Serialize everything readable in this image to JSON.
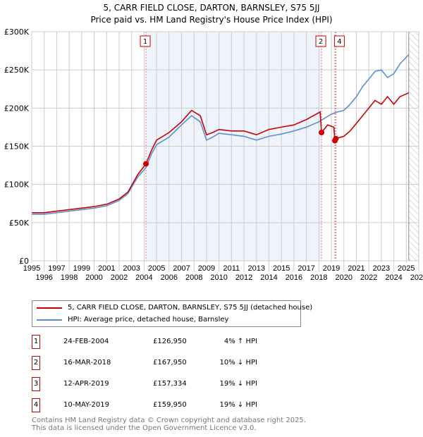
{
  "chart_data": {
    "type": "line",
    "title": "5, CARR FIELD CLOSE, DARTON, BARNSLEY, S75 5JJ",
    "subtitle": "Price paid vs. HM Land Registry's House Price Index (HPI)",
    "xlim": [
      1995,
      2026
    ],
    "ylim": [
      0,
      300000
    ],
    "x_ticks": [
      "1995",
      "1996",
      "1997",
      "1998",
      "1999",
      "2000",
      "2001",
      "2002",
      "2003",
      "2004",
      "2005",
      "2006",
      "2007",
      "2008",
      "2009",
      "2010",
      "2011",
      "2012",
      "2013",
      "2014",
      "2015",
      "2016",
      "2017",
      "2018",
      "2019",
      "2020",
      "2021",
      "2022",
      "2023",
      "2024",
      "2025",
      "2026"
    ],
    "y_ticks": [
      {
        "v": 0,
        "l": "£0"
      },
      {
        "v": 50000,
        "l": "£50K"
      },
      {
        "v": 100000,
        "l": "£100K"
      },
      {
        "v": 150000,
        "l": "£150K"
      },
      {
        "v": 200000,
        "l": "£200K"
      },
      {
        "v": 250000,
        "l": "£250K"
      },
      {
        "v": 300000,
        "l": "£300K"
      }
    ],
    "grid": true,
    "forecast_start": 2025.2,
    "series": [
      {
        "name": "5, CARR FIELD CLOSE, DARTON, BARNSLEY, S75 5JJ (detached house)",
        "color": "#cc0000",
        "x": [
          1995,
          1996,
          1997,
          1998,
          1999,
          2000,
          2001,
          2002,
          2002.7,
          2003.5,
          2004.15,
          2004.6,
          2005,
          2006,
          2007,
          2007.8,
          2008.5,
          2009,
          2009.5,
          2010,
          2011,
          2012,
          2013,
          2014,
          2015,
          2016,
          2017,
          2018.1,
          2018.21,
          2018.7,
          2019.2,
          2019.28,
          2019.36,
          2020,
          2020.5,
          2021,
          2021.5,
          2022,
          2022.5,
          2023,
          2023.5,
          2024,
          2024.5,
          2025.2
        ],
        "y": [
          63000,
          63000,
          65000,
          67000,
          69000,
          71000,
          74000,
          81000,
          90000,
          113000,
          126950,
          145000,
          158000,
          168000,
          182000,
          197000,
          190000,
          165000,
          168000,
          172000,
          170000,
          170000,
          165000,
          172000,
          175000,
          178000,
          185000,
          195000,
          167950,
          178000,
          175000,
          157334,
          159950,
          163000,
          170000,
          180000,
          190000,
          200000,
          210000,
          205000,
          215000,
          205000,
          215000,
          220000
        ]
      },
      {
        "name": "HPI: Average price, detached house, Barnsley",
        "color": "#5b8fd0",
        "x": [
          1995,
          1996,
          1997,
          1998,
          1999,
          2000,
          2001,
          2002,
          2002.7,
          2003.5,
          2004.15,
          2004.6,
          2005,
          2006,
          2007,
          2007.8,
          2008.5,
          2009,
          2009.5,
          2010,
          2011,
          2012,
          2013,
          2014,
          2015,
          2016,
          2017,
          2018,
          2019,
          2019.5,
          2020,
          2020.5,
          2021,
          2021.5,
          2022,
          2022.5,
          2023,
          2023.5,
          2024,
          2024.5,
          2025.2
        ],
        "y": [
          61000,
          61000,
          63000,
          65000,
          67000,
          69000,
          72000,
          79000,
          88000,
          110000,
          122000,
          140000,
          152000,
          162000,
          178000,
          190000,
          182000,
          158000,
          162000,
          167000,
          165000,
          163000,
          158000,
          163000,
          166000,
          170000,
          175000,
          182000,
          192000,
          195000,
          197000,
          205000,
          215000,
          228000,
          238000,
          248000,
          250000,
          240000,
          245000,
          258000,
          270000
        ]
      }
    ],
    "sales": [
      {
        "n": "1",
        "date": "24-FEB-2004",
        "x": 2004.15,
        "price": "£126,950",
        "value": 126950,
        "hpi": "4% ↑ HPI"
      },
      {
        "n": "2",
        "date": "16-MAR-2018",
        "x": 2018.21,
        "price": "£167,950",
        "value": 167950,
        "hpi": "10% ↓ HPI"
      },
      {
        "n": "3",
        "date": "12-APR-2019",
        "x": 2019.28,
        "price": "£157,334",
        "value": 157334,
        "hpi": "19% ↓ HPI"
      },
      {
        "n": "4",
        "date": "10-MAY-2019",
        "x": 2019.36,
        "price": "£159,950",
        "value": 159950,
        "hpi": "19% ↓ HPI"
      }
    ]
  },
  "footer": {
    "line1": "Contains HM Land Registry data © Crown copyright and database right 2025.",
    "line2": "This data is licensed under the Open Government Licence v3.0."
  }
}
